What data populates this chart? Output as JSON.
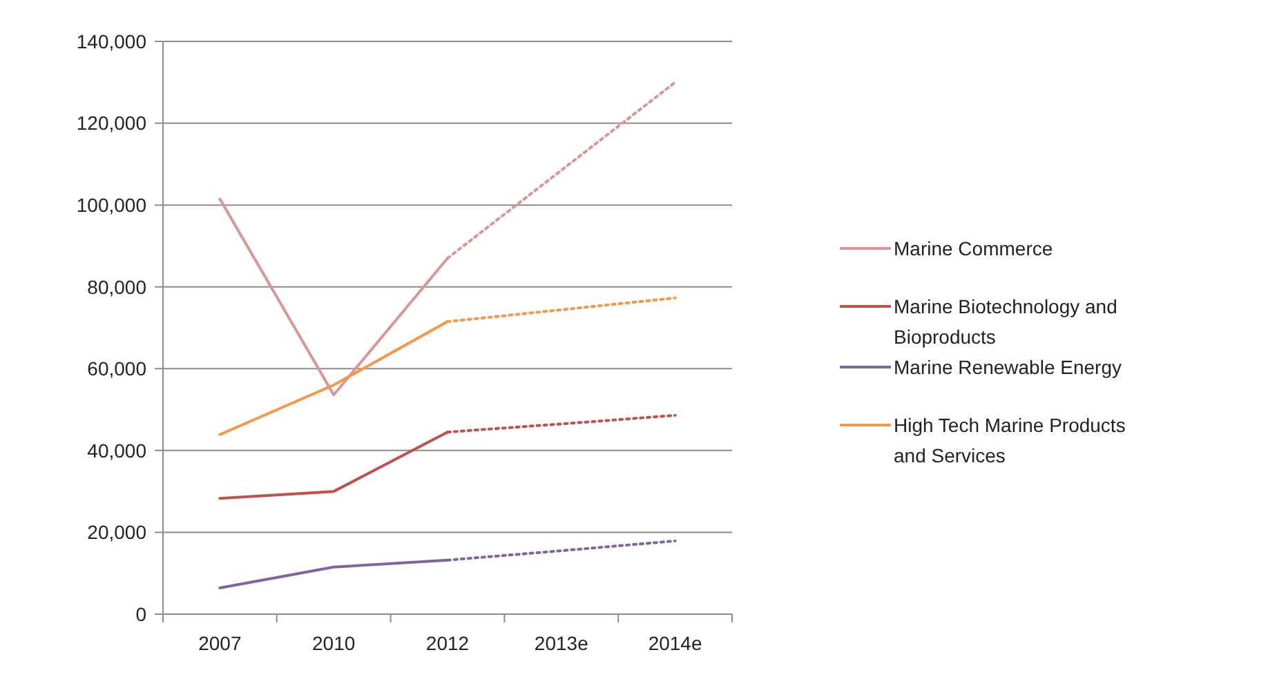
{
  "chart_data": {
    "type": "line",
    "categories": [
      "2007",
      "2010",
      "2012",
      "2013e",
      "2014e"
    ],
    "series": [
      {
        "name": "Marine Commerce",
        "color": "#d99694",
        "values": [
          101500,
          53600,
          87000,
          null,
          null
        ]
      },
      {
        "color": "#d99694",
        "line_style": "dotted",
        "values": [
          null,
          null,
          87000,
          108500,
          130000
        ]
      },
      {
        "name": "Marine Biotechnology and Bioproducts",
        "color": "#c0504d",
        "values": [
          28300,
          30000,
          44500,
          null,
          null
        ]
      },
      {
        "color": "#c0504d",
        "line_style": "dotted",
        "values": [
          null,
          null,
          44500,
          46500,
          48600
        ]
      },
      {
        "name": "Marine Renewable Energy",
        "color": "#8064a2",
        "values": [
          6400,
          11500,
          13200,
          null,
          null
        ]
      },
      {
        "color": "#8064a2",
        "line_style": "dotted",
        "values": [
          null,
          null,
          13200,
          15500,
          17900
        ]
      },
      {
        "name": "High Tech Marine Products and Services",
        "color": "#f79646",
        "values": [
          43900,
          56000,
          71500,
          null,
          null
        ]
      },
      {
        "color": "#f79646",
        "line_style": "dotted",
        "values": [
          null,
          null,
          71500,
          74400,
          77300
        ]
      }
    ],
    "ylim": [
      0,
      140000
    ],
    "yticks": [
      {
        "value": 0,
        "label": "0"
      },
      {
        "value": 20000,
        "label": "20,000"
      },
      {
        "value": 40000,
        "label": "40,000"
      },
      {
        "value": 60000,
        "label": "60,000"
      },
      {
        "value": 80000,
        "label": "80,000"
      },
      {
        "value": 100000,
        "label": "100,000"
      },
      {
        "value": 120000,
        "label": "120,000"
      },
      {
        "value": 140000,
        "label": "140,000"
      }
    ],
    "grid": "y",
    "legend": "right",
    "line_style": "solid",
    "marker": "none"
  }
}
